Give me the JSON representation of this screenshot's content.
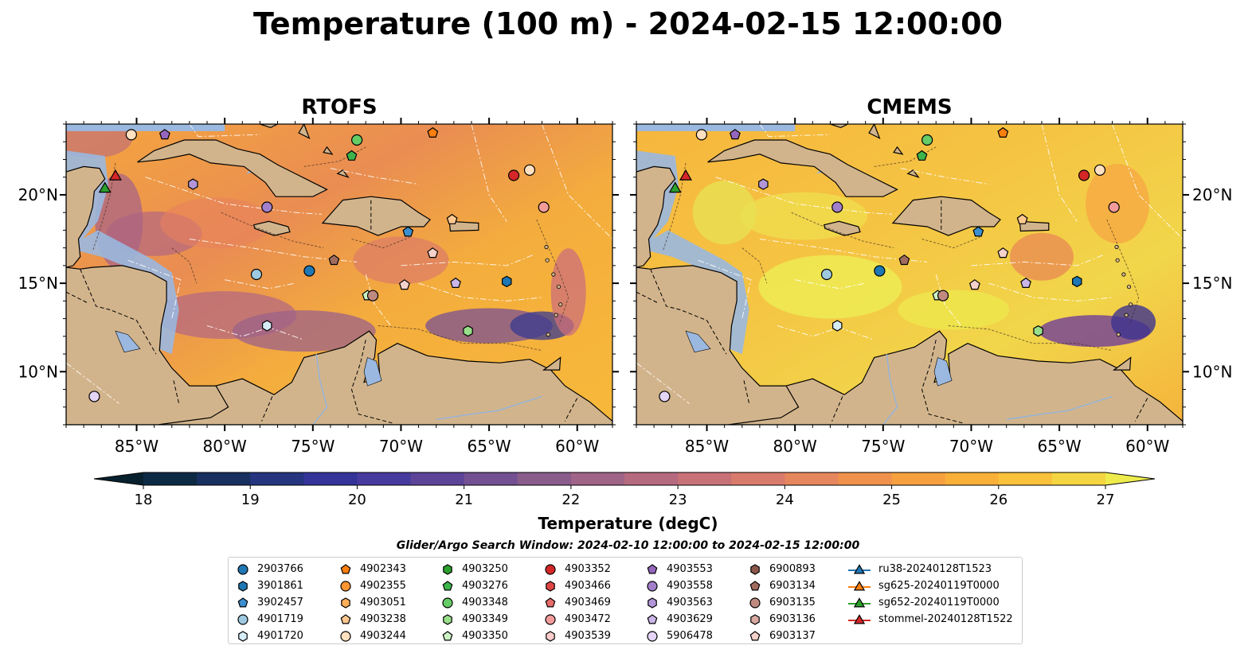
{
  "title": "Temperature (100 m) - 2024-02-15 12:00:00",
  "panels": [
    {
      "title": "RTOFS"
    },
    {
      "title": "CMEMS"
    }
  ],
  "lon_ticks": [
    "85°W",
    "80°W",
    "75°W",
    "70°W",
    "65°W",
    "60°W"
  ],
  "lat_ticks": [
    "20°N",
    "15°N",
    "10°N"
  ],
  "colorbar": {
    "label": "Temperature (degC)",
    "ticks": [
      "18",
      "19",
      "20",
      "21",
      "22",
      "23",
      "24",
      "25",
      "26",
      "27"
    ],
    "colors": [
      "#08202e",
      "#0d2a45",
      "#17305f",
      "#24347f",
      "#33339a",
      "#473a9e",
      "#5d4499",
      "#735092",
      "#895c8c",
      "#9f6487",
      "#b56a80",
      "#c87277",
      "#d87b6c",
      "#e6865c",
      "#f0924c",
      "#f6a040",
      "#f9b039",
      "#fac13b",
      "#f5d542",
      "#eeec4d"
    ]
  },
  "search_window": "Glider/Argo Search Window: 2024-02-10 12:00:00 to 2024-02-15 12:00:00",
  "legend": {
    "columns": [
      [
        {
          "label": "2903766",
          "marker": "circle",
          "color": "#1f77b4"
        },
        {
          "label": "3901861",
          "marker": "hexagon",
          "color": "#1f77b4"
        },
        {
          "label": "3902457",
          "marker": "pentagon",
          "color": "#3b8fd0"
        },
        {
          "label": "4901719",
          "marker": "circle",
          "color": "#9ecae1"
        },
        {
          "label": "4901720",
          "marker": "hexagon",
          "color": "#d6ecf7"
        }
      ],
      [
        {
          "label": "4902343",
          "marker": "pentagon",
          "color": "#ff7f0e"
        },
        {
          "label": "4902355",
          "marker": "circle",
          "color": "#ff9632"
        },
        {
          "label": "4903051",
          "marker": "hexagon",
          "color": "#ffae5a"
        },
        {
          "label": "4903238",
          "marker": "pentagon",
          "color": "#ffc891"
        },
        {
          "label": "4903244",
          "marker": "circle",
          "color": "#ffe0c0"
        }
      ],
      [
        {
          "label": "4903250",
          "marker": "hexagon",
          "color": "#2ca02c"
        },
        {
          "label": "4903276",
          "marker": "pentagon",
          "color": "#3cb44b"
        },
        {
          "label": "4903348",
          "marker": "circle",
          "color": "#66cc66"
        },
        {
          "label": "4903349",
          "marker": "hexagon",
          "color": "#98df8a"
        },
        {
          "label": "4903350",
          "marker": "pentagon",
          "color": "#ccf2c4"
        }
      ],
      [
        {
          "label": "4903352",
          "marker": "circle",
          "color": "#d62728"
        },
        {
          "label": "4903466",
          "marker": "hexagon",
          "color": "#e04545"
        },
        {
          "label": "4903469",
          "marker": "pentagon",
          "color": "#ea6a6a"
        },
        {
          "label": "4903472",
          "marker": "circle",
          "color": "#f29b9b"
        },
        {
          "label": "4903539",
          "marker": "hexagon",
          "color": "#fbcccc"
        }
      ],
      [
        {
          "label": "4903553",
          "marker": "pentagon",
          "color": "#9467bd"
        },
        {
          "label": "4903558",
          "marker": "circle",
          "color": "#a27fcb"
        },
        {
          "label": "4903563",
          "marker": "hexagon",
          "color": "#b396d8"
        },
        {
          "label": "4903629",
          "marker": "pentagon",
          "color": "#cbb6e8"
        },
        {
          "label": "5906478",
          "marker": "circle",
          "color": "#e4d4f6"
        }
      ],
      [
        {
          "label": "6900893",
          "marker": "hexagon",
          "color": "#8c564b"
        },
        {
          "label": "6903134",
          "marker": "pentagon",
          "color": "#a16c60"
        },
        {
          "label": "6903135",
          "marker": "circle",
          "color": "#c08a80"
        },
        {
          "label": "6903136",
          "marker": "hexagon",
          "color": "#d9aaa2"
        },
        {
          "label": "6903137",
          "marker": "pentagon",
          "color": "#f4d2cb"
        }
      ],
      [
        {
          "label": "ru38-20240128T1523",
          "marker": "triangle-line",
          "color": "#1f77b4"
        },
        {
          "label": "sg625-20240119T0000",
          "marker": "triangle-line",
          "color": "#ff7f0e"
        },
        {
          "label": "sg652-20240119T0000",
          "marker": "triangle-line",
          "color": "#2ca02c"
        },
        {
          "label": "stommel-20240128T1522",
          "marker": "triangle-line",
          "color": "#d62728"
        }
      ]
    ]
  },
  "map_extent": {
    "lon": [
      -89,
      -58
    ],
    "lat": [
      7,
      24
    ]
  },
  "float_positions": [
    {
      "id": "4903244",
      "lon": -85.3,
      "lat": 23.4
    },
    {
      "id": "4903553",
      "lon": -83.4,
      "lat": 23.4
    },
    {
      "id": "4903348",
      "lon": -72.5,
      "lat": 23.1
    },
    {
      "id": "4902343",
      "lon": -68.2,
      "lat": 23.5
    },
    {
      "id": "4903276",
      "lon": -72.8,
      "lat": 22.2
    },
    {
      "id": "4903352",
      "lon": -63.6,
      "lat": 21.1
    },
    {
      "id": "4903244",
      "lon": -62.7,
      "lat": 21.4
    },
    {
      "id": "4903563",
      "lon": -81.8,
      "lat": 20.6
    },
    {
      "id": "4903558",
      "lon": -77.6,
      "lat": 19.3
    },
    {
      "id": "4903238",
      "lon": -67.1,
      "lat": 18.6
    },
    {
      "id": "4903472",
      "lon": -61.9,
      "lat": 19.3
    },
    {
      "id": "3902457",
      "lon": -69.6,
      "lat": 17.9
    },
    {
      "id": "6903134",
      "lon": -73.8,
      "lat": 16.3
    },
    {
      "id": "6903137",
      "lon": -68.2,
      "lat": 16.7
    },
    {
      "id": "4901719",
      "lon": -78.2,
      "lat": 15.5
    },
    {
      "id": "2903766",
      "lon": -75.2,
      "lat": 15.7
    },
    {
      "id": "6903137",
      "lon": -69.8,
      "lat": 14.9
    },
    {
      "id": "4903629",
      "lon": -66.9,
      "lat": 15.0
    },
    {
      "id": "3901861",
      "lon": -64.0,
      "lat": 15.1
    },
    {
      "id": "4903350",
      "lon": -71.9,
      "lat": 14.3
    },
    {
      "id": "6903135",
      "lon": -71.6,
      "lat": 14.3
    },
    {
      "id": "4901720",
      "lon": -77.6,
      "lat": 12.6
    },
    {
      "id": "4903349",
      "lon": -66.2,
      "lat": 12.3
    },
    {
      "id": "5906478",
      "lon": -87.4,
      "lat": 8.6
    }
  ],
  "glider_positions": [
    {
      "id": "sg652-20240119T0000",
      "lon": -86.8,
      "lat": 20.4
    },
    {
      "id": "stommel-20240128T1522",
      "lon": -86.2,
      "lat": 21.1
    }
  ]
}
